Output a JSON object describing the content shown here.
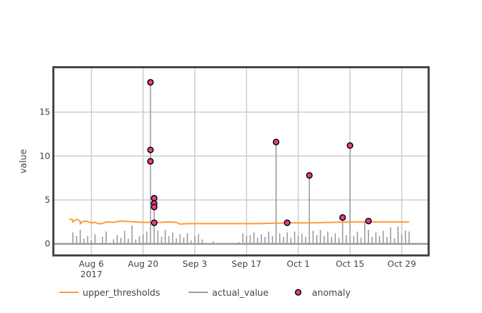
{
  "chart_data": {
    "type": "line",
    "xlabel": "",
    "ylabel": "value",
    "x_range": [
      "2017-07-27",
      "2017-11-05"
    ],
    "ylim": [
      -1.2,
      20
    ],
    "grid": true,
    "legend_position": "bottom",
    "x_ticks": [
      {
        "date": "2017-08-06",
        "label": "Aug 6",
        "sublabel": "2017"
      },
      {
        "date": "2017-08-20",
        "label": "Aug 20",
        "sublabel": ""
      },
      {
        "date": "2017-09-03",
        "label": "Sep 3",
        "sublabel": ""
      },
      {
        "date": "2017-09-17",
        "label": "Sep 17",
        "sublabel": ""
      },
      {
        "date": "2017-10-01",
        "label": "Oct 1",
        "sublabel": ""
      },
      {
        "date": "2017-10-15",
        "label": "Oct 15",
        "sublabel": ""
      },
      {
        "date": "2017-10-29",
        "label": "Oct 29",
        "sublabel": ""
      }
    ],
    "y_ticks": [
      {
        "value": 0,
        "label": "0"
      },
      {
        "value": 5,
        "label": "5"
      },
      {
        "value": 10,
        "label": "10"
      },
      {
        "value": 15,
        "label": "15"
      }
    ],
    "series": [
      {
        "name": "upper_thresholds",
        "kind": "line",
        "color": "#ff9933",
        "points": [
          [
            "2017-07-31",
            2.8
          ],
          [
            "2017-08-01",
            2.75
          ],
          [
            "2017-08-01",
            2.5
          ],
          [
            "2017-08-02",
            2.8
          ],
          [
            "2017-08-03",
            2.6
          ],
          [
            "2017-08-03",
            2.3
          ],
          [
            "2017-08-04",
            2.6
          ],
          [
            "2017-08-05",
            2.55
          ],
          [
            "2017-08-06",
            2.4
          ],
          [
            "2017-08-07",
            2.45
          ],
          [
            "2017-08-08",
            2.3
          ],
          [
            "2017-08-09",
            2.3
          ],
          [
            "2017-08-10",
            2.5
          ],
          [
            "2017-08-12",
            2.45
          ],
          [
            "2017-08-14",
            2.6
          ],
          [
            "2017-08-16",
            2.55
          ],
          [
            "2017-08-18",
            2.5
          ],
          [
            "2017-08-20",
            2.45
          ],
          [
            "2017-08-22",
            2.45
          ],
          [
            "2017-08-25",
            2.45
          ],
          [
            "2017-08-27",
            2.5
          ],
          [
            "2017-08-29",
            2.45
          ],
          [
            "2017-08-30",
            2.25
          ],
          [
            "2017-09-01",
            2.3
          ],
          [
            "2017-09-05",
            2.3
          ],
          [
            "2017-09-10",
            2.3
          ],
          [
            "2017-09-15",
            2.3
          ],
          [
            "2017-09-20",
            2.3
          ],
          [
            "2017-09-25",
            2.35
          ],
          [
            "2017-09-30",
            2.4
          ],
          [
            "2017-10-05",
            2.4
          ],
          [
            "2017-10-10",
            2.45
          ],
          [
            "2017-10-15",
            2.5
          ],
          [
            "2017-10-20",
            2.5
          ],
          [
            "2017-10-25",
            2.5
          ],
          [
            "2017-10-31",
            2.5
          ]
        ]
      },
      {
        "name": "actual_value",
        "kind": "spikes",
        "color": "#999999",
        "spikes": [
          [
            "2017-08-01",
            1.3
          ],
          [
            "2017-08-02",
            0.9
          ],
          [
            "2017-08-03",
            1.6
          ],
          [
            "2017-08-04",
            0.6
          ],
          [
            "2017-08-05",
            0.9
          ],
          [
            "2017-08-06",
            0.4
          ],
          [
            "2017-08-07",
            1.1
          ],
          [
            "2017-08-09",
            0.8
          ],
          [
            "2017-08-10",
            1.4
          ],
          [
            "2017-08-12",
            0.5
          ],
          [
            "2017-08-13",
            1.0
          ],
          [
            "2017-08-14",
            0.7
          ],
          [
            "2017-08-15",
            1.5
          ],
          [
            "2017-08-16",
            0.6
          ],
          [
            "2017-08-17",
            2.1
          ],
          [
            "2017-08-18",
            0.5
          ],
          [
            "2017-08-19",
            0.9
          ],
          [
            "2017-08-20",
            1.1
          ],
          [
            "2017-08-21",
            1.4
          ],
          [
            "2017-08-22",
            18.4
          ],
          [
            "2017-08-23",
            5.2
          ],
          [
            "2017-08-24",
            1.5
          ],
          [
            "2017-08-25",
            0.8
          ],
          [
            "2017-08-26",
            1.6
          ],
          [
            "2017-08-27",
            0.9
          ],
          [
            "2017-08-28",
            1.3
          ],
          [
            "2017-08-29",
            0.6
          ],
          [
            "2017-08-30",
            1.1
          ],
          [
            "2017-08-31",
            0.7
          ],
          [
            "2017-09-01",
            1.2
          ],
          [
            "2017-09-02",
            0.4
          ],
          [
            "2017-09-03",
            0.9
          ],
          [
            "2017-09-04",
            1.1
          ],
          [
            "2017-09-05",
            0.5
          ],
          [
            "2017-09-08",
            0.3
          ],
          [
            "2017-09-15",
            0.2
          ],
          [
            "2017-09-16",
            1.2
          ],
          [
            "2017-09-17",
            0.9
          ],
          [
            "2017-09-18",
            1.0
          ],
          [
            "2017-09-19",
            1.3
          ],
          [
            "2017-09-20",
            0.7
          ],
          [
            "2017-09-21",
            1.1
          ],
          [
            "2017-09-22",
            0.8
          ],
          [
            "2017-09-23",
            1.4
          ],
          [
            "2017-09-24",
            0.9
          ],
          [
            "2017-09-25",
            11.6
          ],
          [
            "2017-09-26",
            1.2
          ],
          [
            "2017-09-27",
            0.8
          ],
          [
            "2017-09-28",
            1.3
          ],
          [
            "2017-09-29",
            0.7
          ],
          [
            "2017-09-30",
            1.4
          ],
          [
            "2017-10-01",
            0.9
          ],
          [
            "2017-10-02",
            1.2
          ],
          [
            "2017-10-03",
            0.8
          ],
          [
            "2017-10-04",
            7.8
          ],
          [
            "2017-10-05",
            1.5
          ],
          [
            "2017-10-06",
            1.0
          ],
          [
            "2017-10-07",
            1.6
          ],
          [
            "2017-10-08",
            0.9
          ],
          [
            "2017-10-09",
            1.4
          ],
          [
            "2017-10-10",
            0.8
          ],
          [
            "2017-10-11",
            1.2
          ],
          [
            "2017-10-12",
            0.7
          ],
          [
            "2017-10-13",
            2.9
          ],
          [
            "2017-10-14",
            1.0
          ],
          [
            "2017-10-15",
            11.2
          ],
          [
            "2017-10-16",
            0.9
          ],
          [
            "2017-10-17",
            1.4
          ],
          [
            "2017-10-18",
            0.7
          ],
          [
            "2017-10-19",
            2.6
          ],
          [
            "2017-10-20",
            1.6
          ],
          [
            "2017-10-21",
            0.8
          ],
          [
            "2017-10-22",
            1.3
          ],
          [
            "2017-10-23",
            0.9
          ],
          [
            "2017-10-24",
            1.5
          ],
          [
            "2017-10-25",
            0.8
          ],
          [
            "2017-10-26",
            1.9
          ],
          [
            "2017-10-27",
            0.6
          ],
          [
            "2017-10-28",
            2.0
          ],
          [
            "2017-10-29",
            1.1
          ],
          [
            "2017-10-30",
            1.5
          ],
          [
            "2017-10-31",
            1.4
          ]
        ]
      },
      {
        "name": "anomaly",
        "kind": "markers",
        "color": "#e83e8c",
        "points": [
          [
            "2017-08-22",
            18.4
          ],
          [
            "2017-08-22",
            10.7
          ],
          [
            "2017-08-22",
            9.4
          ],
          [
            "2017-08-23",
            5.2
          ],
          [
            "2017-08-23",
            4.6
          ],
          [
            "2017-08-23",
            4.2
          ],
          [
            "2017-08-23",
            2.4
          ],
          [
            "2017-09-25",
            11.6
          ],
          [
            "2017-09-28",
            2.4
          ],
          [
            "2017-10-04",
            7.8
          ],
          [
            "2017-10-13",
            3.0
          ],
          [
            "2017-10-15",
            11.2
          ],
          [
            "2017-10-20",
            2.6
          ]
        ]
      }
    ],
    "legend": [
      {
        "label": "upper_thresholds",
        "kind": "line",
        "color": "#ff9933"
      },
      {
        "label": "actual_value",
        "kind": "line",
        "color": "#999999"
      },
      {
        "label": "anomaly",
        "kind": "marker",
        "color": "#e83e8c"
      }
    ]
  }
}
